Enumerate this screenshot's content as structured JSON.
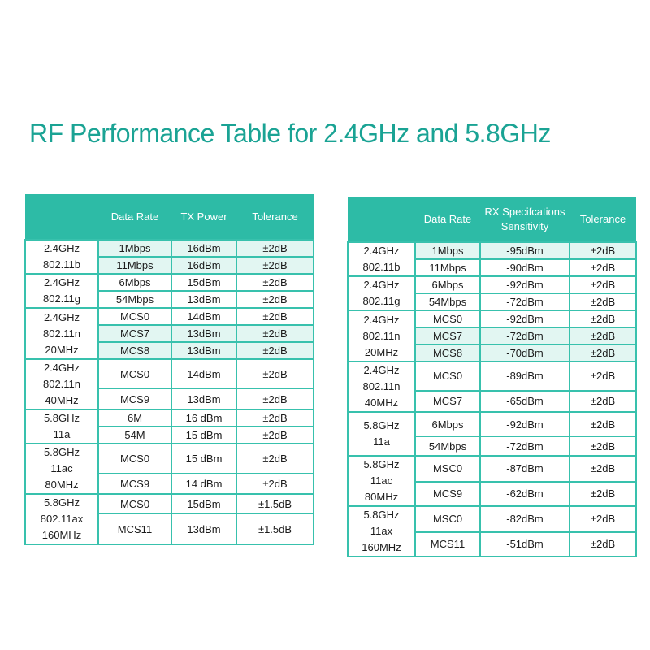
{
  "title": "RF Performance Table for 2.4GHz and 5.8GHz",
  "colors": {
    "accent": "#2dbba6",
    "title": "#1aa394",
    "highlight": "#e2f6f2",
    "border": "#38c1ad"
  },
  "tx_table": {
    "headers": [
      "",
      "Data Rate",
      "TX Power",
      "Tolerance"
    ],
    "groups": [
      {
        "band": "2.4GHz\n802.11b",
        "rows": [
          {
            "rate": "1Mbps",
            "value": "16dBm",
            "tol": "±2dB"
          },
          {
            "rate": "11Mbps",
            "value": "16dBm",
            "tol": "±2dB"
          }
        ]
      },
      {
        "band": "2.4GHz\n802.11g",
        "rows": [
          {
            "rate": "6Mbps",
            "value": "15dBm",
            "tol": "±2dB"
          },
          {
            "rate": "54Mbps",
            "value": "13dBm",
            "tol": "±2dB"
          }
        ]
      },
      {
        "band": "2.4GHz\n802.11n\n20MHz",
        "rows": [
          {
            "rate": "MCS0",
            "value": "14dBm",
            "tol": "±2dB"
          },
          {
            "rate": "MCS7",
            "value": "13dBm",
            "tol": "±2dB"
          },
          {
            "rate": "MCS8",
            "value": "13dBm",
            "tol": "±2dB"
          }
        ]
      },
      {
        "band": "2.4GHz\n802.11n\n40MHz",
        "rows": [
          {
            "rate": "MCS0",
            "value": "14dBm",
            "tol": "±2dB"
          },
          {
            "rate": "MCS9",
            "value": "13dBm",
            "tol": "±2dB"
          }
        ]
      },
      {
        "band": "5.8GHz\n11a",
        "rows": [
          {
            "rate": "6M",
            "value": "16 dBm",
            "tol": "±2dB"
          },
          {
            "rate": "54M",
            "value": "15 dBm",
            "tol": "±2dB"
          }
        ]
      },
      {
        "band": "5.8GHz\n11ac\n80MHz",
        "rows": [
          {
            "rate": "MCS0",
            "value": "15 dBm",
            "tol": "±2dB"
          },
          {
            "rate": "MCS9",
            "value": "14 dBm",
            "tol": "±2dB"
          }
        ]
      },
      {
        "band": "5.8GHz\n802.11ax\n160MHz",
        "rows": [
          {
            "rate": "MCS0",
            "value": "15dBm",
            "tol": "±1.5dB"
          },
          {
            "rate": "MCS11",
            "value": "13dBm",
            "tol": "±1.5dB"
          }
        ]
      }
    ]
  },
  "rx_table": {
    "headers": [
      "",
      "Data Rate",
      "RX Specifcations\nSensitivity",
      "Tolerance"
    ],
    "groups": [
      {
        "band": "2.4GHz\n802.11b",
        "rows": [
          {
            "rate": "1Mbps",
            "value": "-95dBm",
            "tol": "±2dB"
          },
          {
            "rate": "11Mbps",
            "value": "-90dBm",
            "tol": "±2dB"
          }
        ]
      },
      {
        "band": "2.4GHz\n802.11g",
        "rows": [
          {
            "rate": "6Mbps",
            "value": "-92dBm",
            "tol": "±2dB"
          },
          {
            "rate": "54Mbps",
            "value": "-72dBm",
            "tol": "±2dB"
          }
        ]
      },
      {
        "band": "2.4GHz\n802.11n\n20MHz",
        "rows": [
          {
            "rate": "MCS0",
            "value": "-92dBm",
            "tol": "±2dB"
          },
          {
            "rate": "MCS7",
            "value": "-72dBm",
            "tol": "±2dB"
          },
          {
            "rate": "MCS8",
            "value": "-70dBm",
            "tol": "±2dB"
          }
        ]
      },
      {
        "band": "2.4GHz\n802.11n\n40MHz",
        "rows": [
          {
            "rate": "MCS0",
            "value": "-89dBm",
            "tol": "±2dB"
          },
          {
            "rate": "MCS7",
            "value": "-65dBm",
            "tol": "±2dB"
          }
        ]
      },
      {
        "band": "5.8GHz\n11a",
        "rows": [
          {
            "rate": "6Mbps",
            "value": "-92dBm",
            "tol": "±2dB"
          },
          {
            "rate": "54Mbps",
            "value": "-72dBm",
            "tol": "±2dB"
          }
        ]
      },
      {
        "band": "5.8GHz\n11ac\n80MHz",
        "rows": [
          {
            "rate": "MSC0",
            "value": "-87dBm",
            "tol": "±2dB"
          },
          {
            "rate": "MCS9",
            "value": "-62dBm",
            "tol": "±2dB"
          }
        ]
      },
      {
        "band": "5.8GHz\n11ax\n160MHz",
        "rows": [
          {
            "rate": "MSC0",
            "value": "-82dBm",
            "tol": "±2dB"
          },
          {
            "rate": "MCS11",
            "value": "-51dBm",
            "tol": "±2dB"
          }
        ]
      }
    ]
  }
}
